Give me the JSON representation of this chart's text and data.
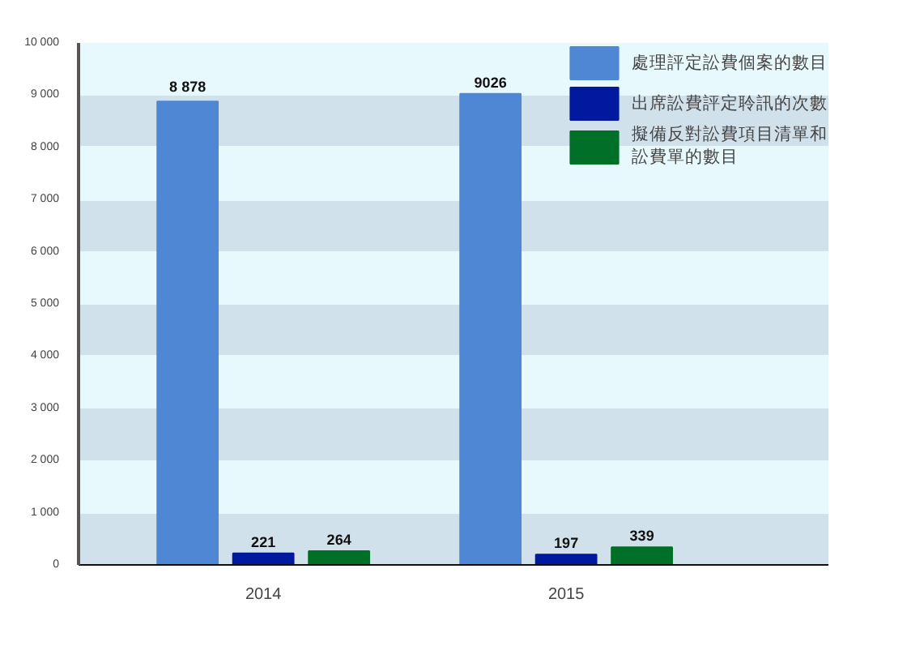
{
  "chart_data": {
    "type": "bar",
    "categories": [
      "2014",
      "2015"
    ],
    "series": [
      {
        "name": "處理評定訟費個案的數目",
        "color": "#4f87d4",
        "values": [
          8878,
          9026
        ],
        "value_labels": [
          "8 878",
          "9026"
        ]
      },
      {
        "name": "出席訟費評定聆訊的次數",
        "color": "#00199e",
        "values": [
          221,
          197
        ],
        "value_labels": [
          "221",
          "197"
        ]
      },
      {
        "name": "擬備反對訟費項目清單和訟費單的數目",
        "color": "#006f27",
        "values": [
          264,
          339
        ],
        "value_labels": [
          "264",
          "339"
        ]
      }
    ],
    "ylim": [
      0,
      10000
    ],
    "yticks": [
      0,
      {
        "value": 1000,
        "label": "1 000"
      },
      {
        "value": 2000,
        "label": "2 000"
      },
      {
        "value": 3000,
        "label": "3 000"
      },
      {
        "value": 4000,
        "label": "4 000"
      },
      {
        "value": 5000,
        "label": "5 000"
      },
      {
        "value": 6000,
        "label": "6 000"
      },
      {
        "value": 7000,
        "label": "7 000"
      },
      {
        "value": 8000,
        "label": "8 000"
      },
      {
        "value": 9000,
        "label": "9 000"
      },
      {
        "value": 10000,
        "label": "10 000"
      }
    ],
    "grid": "y",
    "legend": "top right"
  }
}
